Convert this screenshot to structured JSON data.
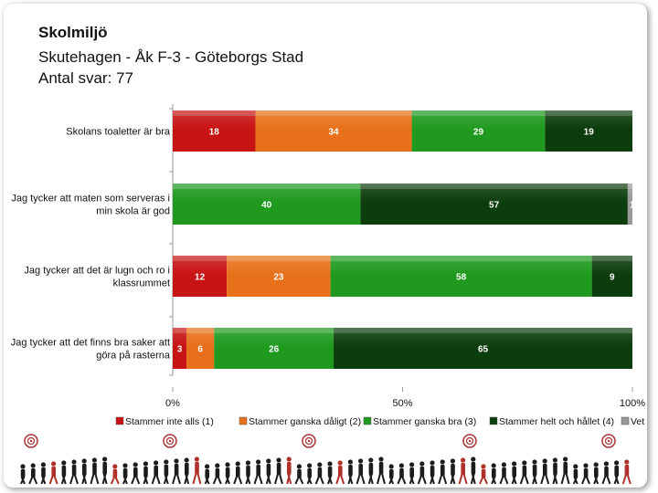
{
  "header": {
    "title": "Skolmiljö",
    "subtitle": "Skutehagen - Åk F-3 - Göteborgs Stad",
    "responses": "Antal svar: 77"
  },
  "chart_data": {
    "type": "bar",
    "orientation": "horizontal",
    "stacked": true,
    "percent_stacked": true,
    "categories": [
      "Skolans toaletter är bra",
      "Jag tycker att maten som serveras i min skola är god",
      "Jag tycker att det är lugn och ro i klassrummet",
      "Jag tycker att det finns bra saker att göra på rasterna"
    ],
    "category_lines": [
      [
        "Skolans toaletter är bra"
      ],
      [
        "Jag tycker att maten som serveras i",
        "min skola är god"
      ],
      [
        "Jag tycker att det är lugn och ro i",
        "klassrummet"
      ],
      [
        "Jag tycker att det finns bra saker att",
        "göra på rasterna"
      ]
    ],
    "series": [
      {
        "name": "Stammer inte alls (1)",
        "color": "#c81414",
        "values": [
          18,
          0,
          12,
          3
        ]
      },
      {
        "name": "Stammer ganska dåligt (2)",
        "color": "#e8701a",
        "values": [
          34,
          0,
          23,
          6
        ]
      },
      {
        "name": "Stammer ganska bra (3)",
        "color": "#1f9a1f",
        "values": [
          29,
          40,
          58,
          26
        ]
      },
      {
        "name": "Stammer helt och hållet (4)",
        "color": "#0c3d0c",
        "values": [
          19,
          57,
          9,
          65
        ]
      },
      {
        "name": "Vet ej",
        "color": "#9a9a9a",
        "values": [
          0,
          1,
          0,
          0
        ]
      }
    ],
    "x_ticks": [
      "0%",
      "50%",
      "100%"
    ],
    "xlim": [
      0,
      100
    ],
    "legend_position": "bottom"
  }
}
